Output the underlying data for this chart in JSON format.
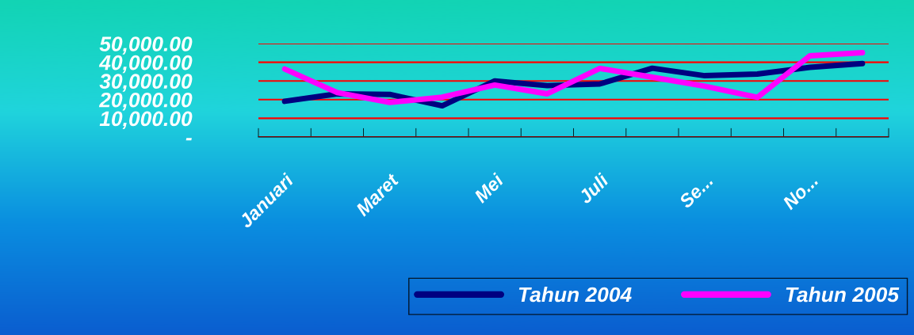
{
  "chart_data": {
    "type": "line",
    "categories": [
      "Januari",
      null,
      "Maret",
      null,
      "Mei",
      null,
      "Juli",
      null,
      "Se...",
      null,
      "No...",
      null
    ],
    "series": [
      {
        "name": "Tahun 2004",
        "color": "#000080",
        "values": [
          19100,
          23100,
          22800,
          16700,
          30000,
          27500,
          28400,
          36800,
          32800,
          33700,
          37300,
          39300
        ]
      },
      {
        "name": "Tahun 2005",
        "color": "#ff00ff",
        "values": [
          36400,
          23800,
          18500,
          21300,
          27800,
          23100,
          36700,
          32000,
          27200,
          21200,
          43400,
          45100
        ]
      }
    ],
    "ylim": [
      0,
      50000
    ],
    "yticks": [
      {
        "value": 0,
        "label": "-"
      },
      {
        "value": 10000,
        "label": "10,000.00"
      },
      {
        "value": 20000,
        "label": "20,000.00"
      },
      {
        "value": 30000,
        "label": "30,000.00"
      },
      {
        "value": 40000,
        "label": "40,000.00"
      },
      {
        "value": 50000,
        "label": "50,000.00"
      }
    ],
    "grid": "y",
    "legend": "bottom",
    "marker": "none",
    "line_style": "solid"
  }
}
